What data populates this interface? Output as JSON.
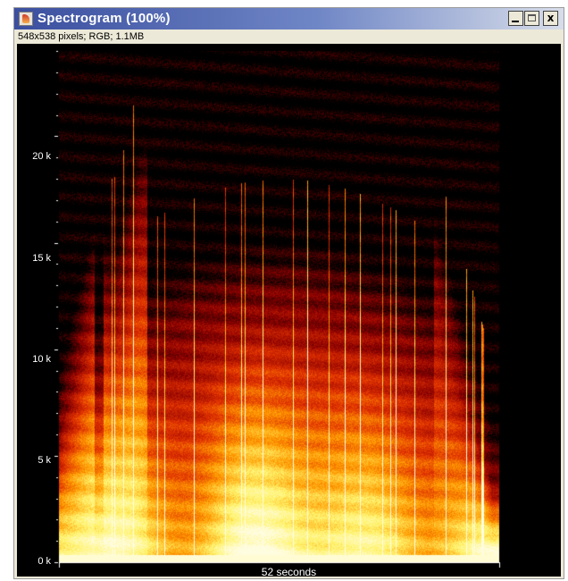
{
  "window": {
    "title": "Spectrogram (100%)",
    "info": "548x538 pixels; RGB; 1.1MB",
    "buttons": {
      "minimize": "_",
      "maximize": "",
      "close": "x"
    }
  },
  "colors": {
    "background": "#000000",
    "titlebar": "#3b4f9f",
    "axis_text": "#ffffff"
  },
  "chart_data": {
    "type": "heatmap",
    "title": "",
    "xlabel": "52 seconds",
    "ylabel": "",
    "yticks": [
      {
        "value": 0,
        "label": "0 k"
      },
      {
        "value": 5000,
        "label": "5 k"
      },
      {
        "value": 10000,
        "label": "10 k"
      },
      {
        "value": 15000,
        "label": "15 k"
      },
      {
        "value": 20000,
        "label": "20 k"
      }
    ],
    "ylim": [
      0,
      24000
    ],
    "colormap": [
      "#000000",
      "#8a0000",
      "#e03000",
      "#ff9a00",
      "#fff36a",
      "#fffde0"
    ],
    "x_range_seconds": [
      0,
      52
    ]
  }
}
